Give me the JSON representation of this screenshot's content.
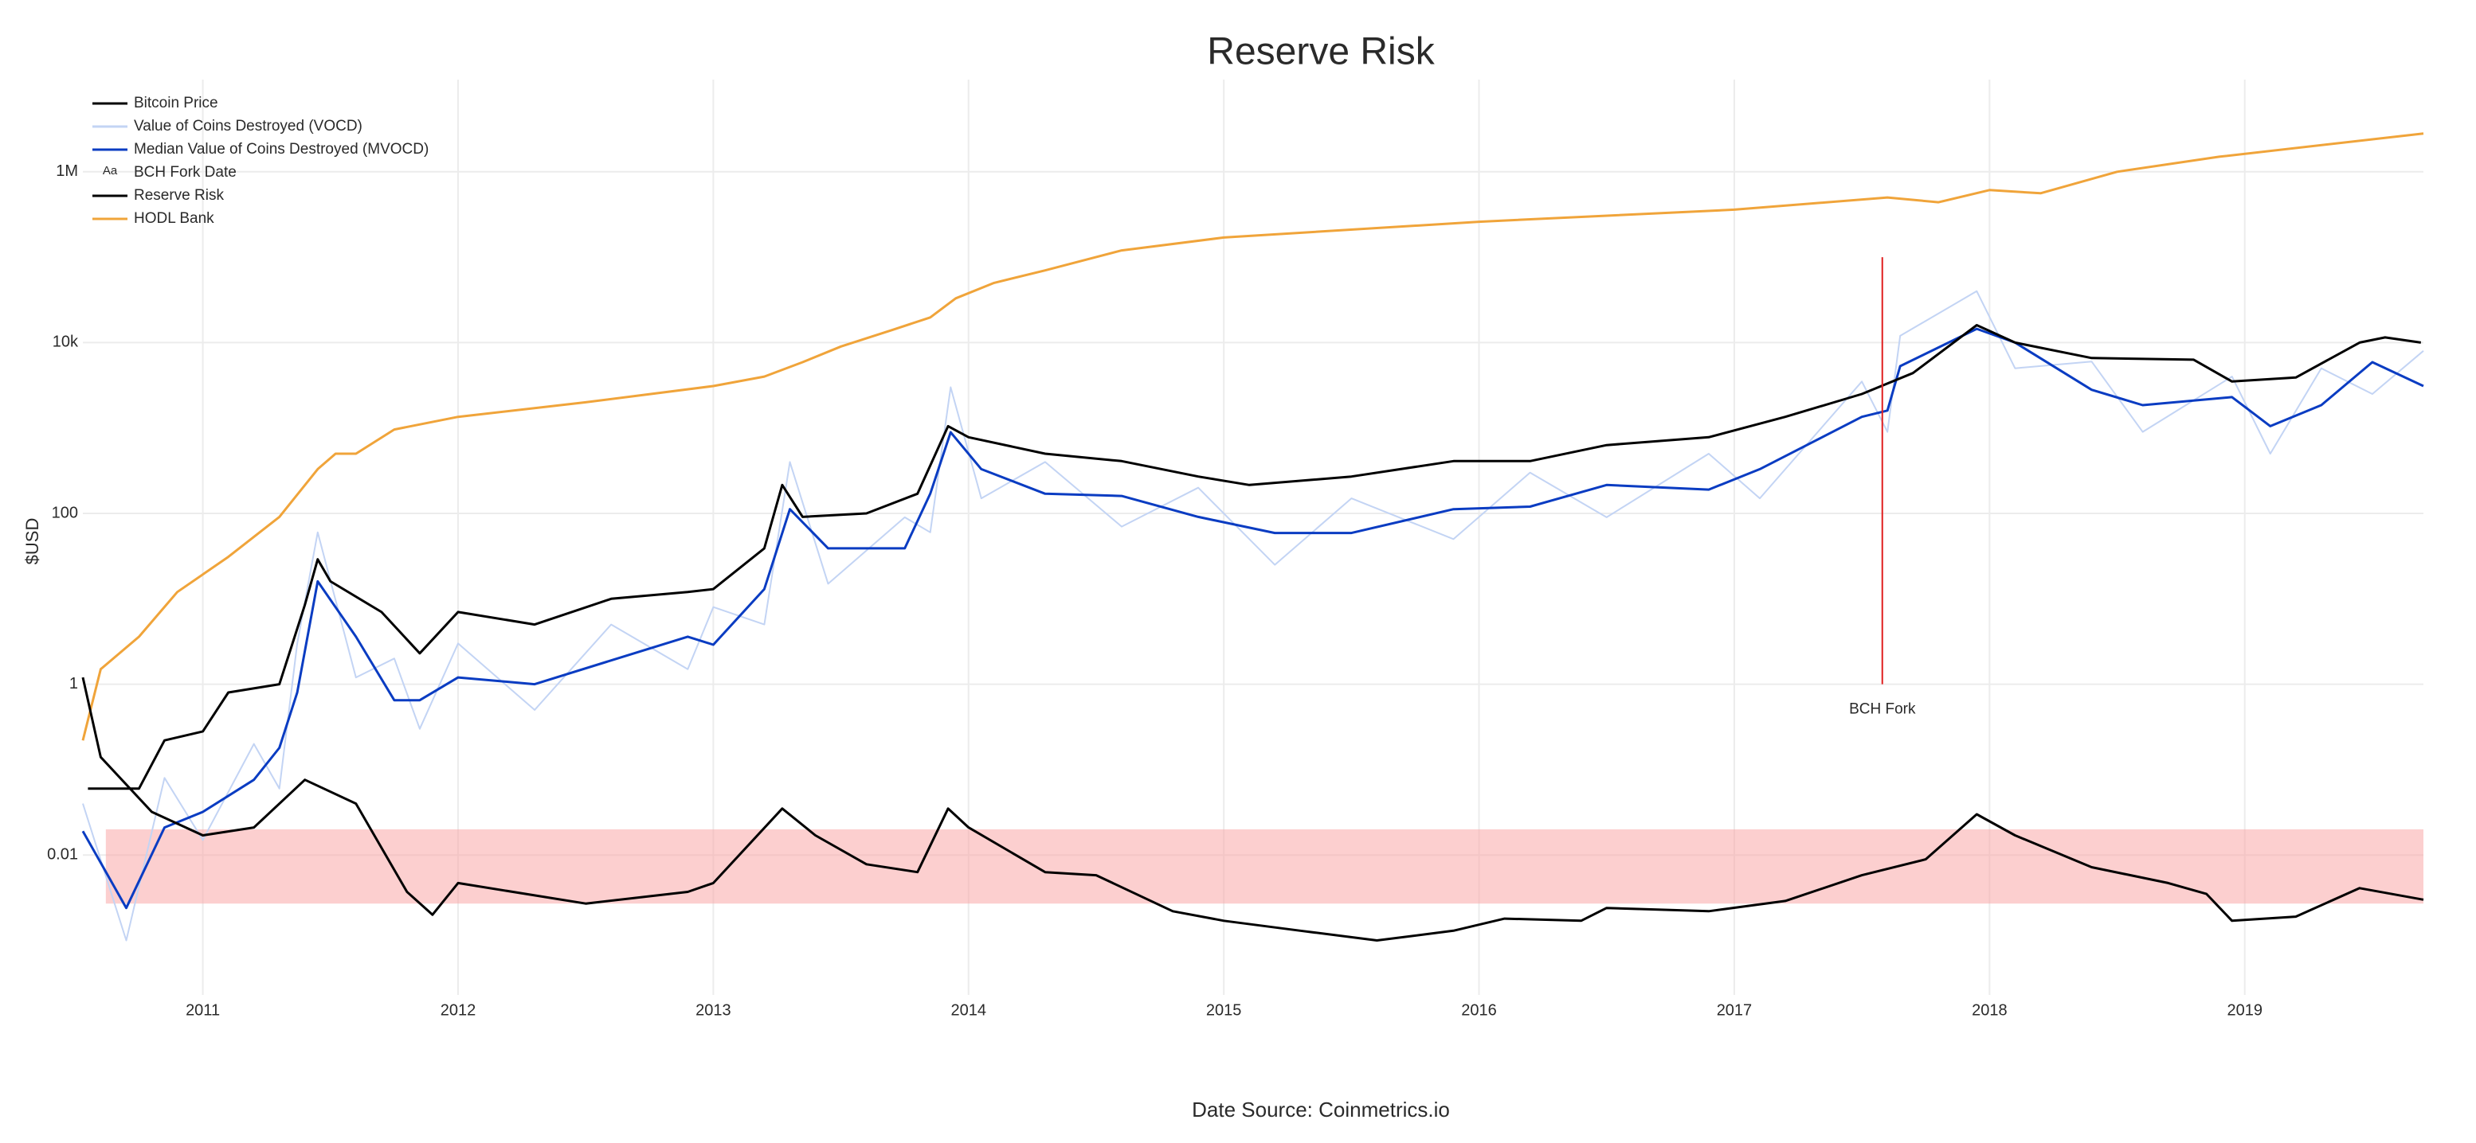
{
  "chart_data": {
    "type": "line",
    "title": "Reserve Risk",
    "y_label": "$USD",
    "footer": "Date Source: Coinmetrics.io",
    "log_y": true,
    "grid": true,
    "legend": "top-left",
    "xlim": [
      2010.53,
      2019.7
    ],
    "xticks": [
      2011,
      2012,
      2013,
      2014,
      2015,
      2016,
      2017,
      2018,
      2019
    ],
    "ylim": [
      0.00023,
      12000000
    ],
    "yticks": [
      0.01,
      1,
      100,
      {
        "value": 10000,
        "label": "10k"
      },
      {
        "value": 1000000,
        "label": "1M"
      }
    ],
    "band": {
      "x": [
        2010.62,
        2019.7
      ],
      "y": [
        0.0027,
        0.02
      ],
      "color": "#f9a8a8"
    },
    "series": [
      {
        "name": "Bitcoin Price",
        "color": "#000000",
        "x": [
          2010.55,
          2010.75,
          2010.85,
          2011.0,
          2011.1,
          2011.3,
          2011.4,
          2011.45,
          2011.5,
          2011.7,
          2011.85,
          2012.0,
          2012.3,
          2012.6,
          2012.9,
          2013.0,
          2013.2,
          2013.27,
          2013.35,
          2013.6,
          2013.8,
          2013.92,
          2014.0,
          2014.3,
          2014.6,
          2014.9,
          2015.1,
          2015.5,
          2015.9,
          2016.2,
          2016.5,
          2016.9,
          2017.2,
          2017.5,
          2017.7,
          2017.95,
          2018.1,
          2018.4,
          2018.8,
          2018.95,
          2019.2,
          2019.45,
          2019.55,
          2019.69
        ],
        "values": [
          0.06,
          0.06,
          0.22,
          0.28,
          0.8,
          1,
          8.5,
          29,
          16,
          7,
          2.3,
          7,
          5,
          10,
          12,
          13,
          39,
          215,
          91,
          100,
          170,
          1050,
          780,
          500,
          410,
          270,
          215,
          270,
          410,
          410,
          630,
          780,
          1350,
          2500,
          4400,
          16000,
          10000,
          6600,
          6300,
          3500,
          3900,
          10000,
          11500,
          10000
        ]
      },
      {
        "name": "Value of Coins Destroyed (VOCD)",
        "color": "#c3d4f4",
        "x": [
          2010.53,
          2010.7,
          2010.85,
          2011.0,
          2011.2,
          2011.3,
          2011.37,
          2011.45,
          2011.6,
          2011.75,
          2011.85,
          2012.0,
          2012.3,
          2012.6,
          2012.9,
          2013.0,
          2013.2,
          2013.3,
          2013.45,
          2013.75,
          2013.85,
          2013.93,
          2014.05,
          2014.3,
          2014.6,
          2014.9,
          2015.2,
          2015.5,
          2015.9,
          2016.2,
          2016.5,
          2016.9,
          2017.1,
          2017.5,
          2017.6,
          2017.65,
          2017.95,
          2018.1,
          2018.4,
          2018.6,
          2018.95,
          2019.1,
          2019.3,
          2019.5,
          2019.7
        ],
        "values": [
          0.04,
          0.001,
          0.08,
          0.015,
          0.2,
          0.06,
          3,
          60,
          1.2,
          2,
          0.3,
          3,
          0.5,
          5,
          1.5,
          8,
          5,
          400,
          15,
          90,
          60,
          3000,
          150,
          400,
          70,
          200,
          25,
          150,
          50,
          300,
          90,
          500,
          150,
          3500,
          900,
          12000,
          40000,
          5000,
          6000,
          900,
          4000,
          500,
          5000,
          2500,
          8000
        ]
      },
      {
        "name": "Median Value of Coins Destroyed (MVOCD)",
        "color": "#0a3cc2",
        "x": [
          2010.53,
          2010.7,
          2010.85,
          2011.0,
          2011.2,
          2011.3,
          2011.37,
          2011.45,
          2011.6,
          2011.75,
          2011.85,
          2012.0,
          2012.3,
          2012.6,
          2012.9,
          2013.0,
          2013.2,
          2013.3,
          2013.45,
          2013.75,
          2013.85,
          2013.93,
          2014.05,
          2014.3,
          2014.6,
          2014.9,
          2015.2,
          2015.5,
          2015.9,
          2016.2,
          2016.5,
          2016.9,
          2017.1,
          2017.5,
          2017.6,
          2017.65,
          2017.95,
          2018.1,
          2018.4,
          2018.6,
          2018.95,
          2019.1,
          2019.3,
          2019.5,
          2019.7
        ],
        "values": [
          0.019,
          0.0024,
          0.021,
          0.032,
          0.076,
          0.18,
          0.8,
          16,
          3.6,
          0.65,
          0.65,
          1.2,
          1,
          1.9,
          3.6,
          2.9,
          13,
          112,
          39,
          39,
          170,
          890,
          330,
          170,
          160,
          91,
          59,
          59,
          112,
          120,
          215,
          190,
          330,
          1350,
          1600,
          5300,
          14500,
          10000,
          2800,
          1850,
          2300,
          1050,
          1850,
          5900,
          3100
        ]
      },
      {
        "name": "BCH Fork Date",
        "mode": "vline",
        "legend_symbol": "Aa",
        "color": "#e02020",
        "x": [
          2017.58,
          2017.58
        ],
        "values": [
          1,
          100000
        ],
        "text": "BCH Fork"
      },
      {
        "name": "Reserve Risk",
        "color": "#000000",
        "x": [
          2010.53,
          2010.6,
          2010.8,
          2011.0,
          2011.2,
          2011.4,
          2011.6,
          2011.8,
          2011.9,
          2012.0,
          2012.5,
          2012.9,
          2013.0,
          2013.27,
          2013.4,
          2013.6,
          2013.8,
          2013.92,
          2014.0,
          2014.3,
          2014.5,
          2014.8,
          2015.0,
          2015.3,
          2015.6,
          2015.9,
          2016.1,
          2016.4,
          2016.5,
          2016.9,
          2017.2,
          2017.5,
          2017.75,
          2017.95,
          2018.1,
          2018.4,
          2018.7,
          2018.85,
          2018.95,
          2019.2,
          2019.45,
          2019.7
        ],
        "values": [
          1.2,
          0.14,
          0.032,
          0.017,
          0.021,
          0.076,
          0.04,
          0.0037,
          0.002,
          0.0047,
          0.0027,
          0.0037,
          0.0047,
          0.035,
          0.017,
          0.0078,
          0.0063,
          0.035,
          0.021,
          0.0063,
          0.0058,
          0.0022,
          0.0017,
          0.0013,
          0.001,
          0.0013,
          0.0018,
          0.0017,
          0.0024,
          0.0022,
          0.0029,
          0.0058,
          0.0089,
          0.03,
          0.017,
          0.0072,
          0.0047,
          0.0035,
          0.0017,
          0.0019,
          0.0041,
          0.003
        ]
      },
      {
        "name": "HODL Bank",
        "color": "#f0a43a",
        "x": [
          2010.53,
          2010.6,
          2010.75,
          2010.9,
          2011.1,
          2011.3,
          2011.45,
          2011.52,
          2011.6,
          2011.75,
          2012.0,
          2012.5,
          2013.0,
          2013.2,
          2013.35,
          2013.5,
          2013.7,
          2013.85,
          2013.95,
          2014.1,
          2014.3,
          2014.6,
          2015.0,
          2016.0,
          2017.0,
          2017.6,
          2017.8,
          2018.0,
          2018.2,
          2018.5,
          2018.9,
          2019.7
        ],
        "values": [
          0.22,
          1.5,
          3.6,
          12,
          31,
          91,
          330,
          500,
          500,
          960,
          1350,
          2000,
          3100,
          4000,
          5900,
          9000,
          14000,
          19700,
          33000,
          50000,
          70000,
          120000,
          170000,
          260000,
          360000,
          500000,
          440000,
          610000,
          560000,
          1000000,
          1500000,
          2800000
        ]
      }
    ]
  }
}
